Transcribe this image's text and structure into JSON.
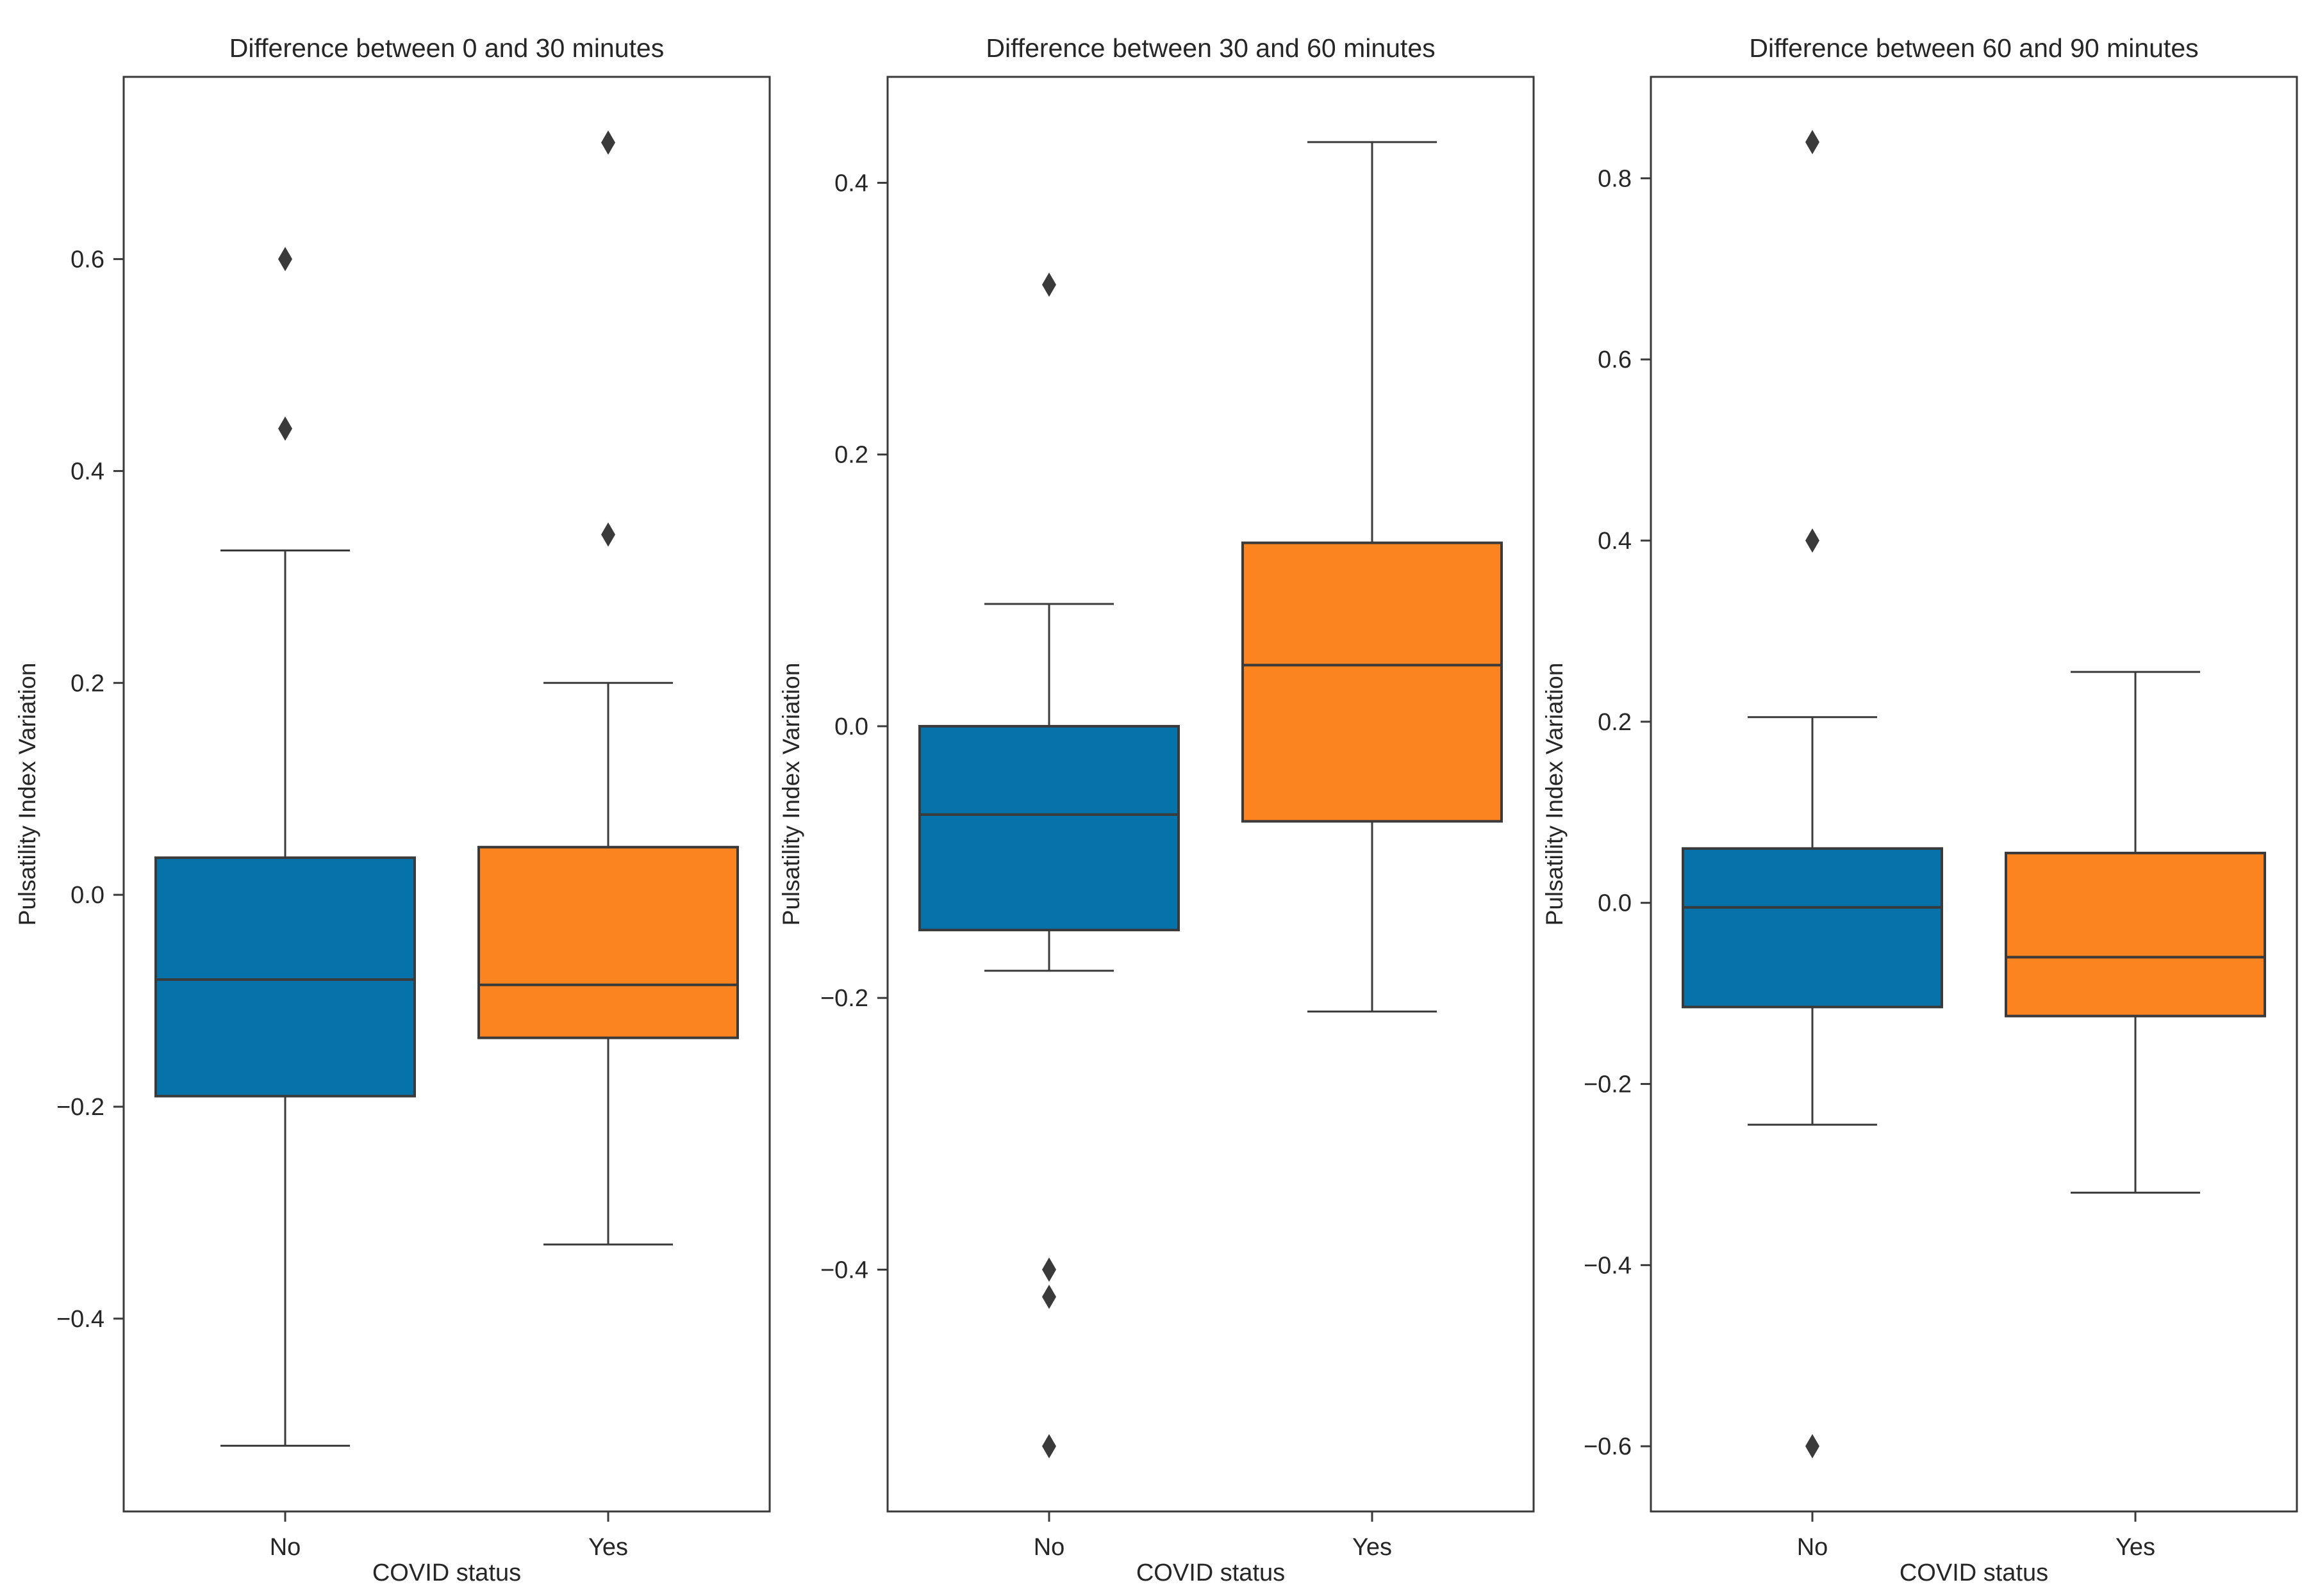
{
  "figure": {
    "background": "#ffffff"
  },
  "style": {
    "line_color": "#3a3a3a",
    "text_color": "#262626",
    "box_colors": {
      "No": "#0573a9",
      "Yes": "#fb8320"
    },
    "outlier_color": "#3a3a3a"
  },
  "chart_data": [
    {
      "type": "box",
      "title": "Difference between 0 and 30 minutes",
      "xlabel": "COVID status",
      "ylabel": "Pulsatility Index Variation",
      "categories": [
        "No",
        "Yes"
      ],
      "ylim": [
        -0.582,
        0.772
      ],
      "yticks": [
        0.6,
        0.4,
        0.2,
        0.0,
        -0.2,
        -0.4
      ],
      "ytick_labels": [
        "0.6",
        "0.4",
        "0.2",
        "0.0",
        "−0.2",
        "−0.4"
      ],
      "groups": [
        {
          "category": "No",
          "whisker_low": -0.52,
          "q1": -0.19,
          "median": -0.08,
          "q3": 0.035,
          "whisker_high": 0.325,
          "outliers": [
            0.44,
            0.6
          ]
        },
        {
          "category": "Yes",
          "whisker_low": -0.33,
          "q1": -0.135,
          "median": -0.085,
          "q3": 0.045,
          "whisker_high": 0.2,
          "outliers": [
            0.34,
            0.71
          ]
        }
      ]
    },
    {
      "type": "box",
      "title": "Difference between 30 and 60 minutes",
      "xlabel": "COVID status",
      "ylabel": "Pulsatility Index Variation",
      "categories": [
        "No",
        "Yes"
      ],
      "ylim": [
        -0.578,
        0.478
      ],
      "yticks": [
        0.4,
        0.2,
        0.0,
        -0.2,
        -0.4
      ],
      "ytick_labels": [
        "0.4",
        "0.2",
        "0.0",
        "−0.2",
        "−0.4"
      ],
      "groups": [
        {
          "category": "No",
          "whisker_low": -0.18,
          "q1": -0.15,
          "median": -0.065,
          "q3": 0.0,
          "whisker_high": 0.09,
          "outliers": [
            0.325,
            -0.4,
            -0.42,
            -0.53
          ]
        },
        {
          "category": "Yes",
          "whisker_low": -0.21,
          "q1": -0.07,
          "median": 0.045,
          "q3": 0.135,
          "whisker_high": 0.43,
          "outliers": []
        }
      ]
    },
    {
      "type": "box",
      "title": "Difference between 60 and 90 minutes",
      "xlabel": "COVID status",
      "ylabel": "Pulsatility Index Variation",
      "categories": [
        "No",
        "Yes"
      ],
      "ylim": [
        -0.672,
        0.912
      ],
      "yticks": [
        0.8,
        0.6,
        0.4,
        0.2,
        0.0,
        -0.2,
        -0.4,
        -0.6
      ],
      "ytick_labels": [
        "0.8",
        "0.6",
        "0.4",
        "0.2",
        "0.0",
        "−0.2",
        "−0.4",
        "−0.6"
      ],
      "groups": [
        {
          "category": "No",
          "whisker_low": -0.245,
          "q1": -0.115,
          "median": -0.005,
          "q3": 0.06,
          "whisker_high": 0.205,
          "outliers": [
            0.84,
            0.4,
            -0.6
          ]
        },
        {
          "category": "Yes",
          "whisker_low": -0.32,
          "q1": -0.125,
          "median": -0.06,
          "q3": 0.055,
          "whisker_high": 0.255,
          "outliers": []
        }
      ]
    }
  ]
}
